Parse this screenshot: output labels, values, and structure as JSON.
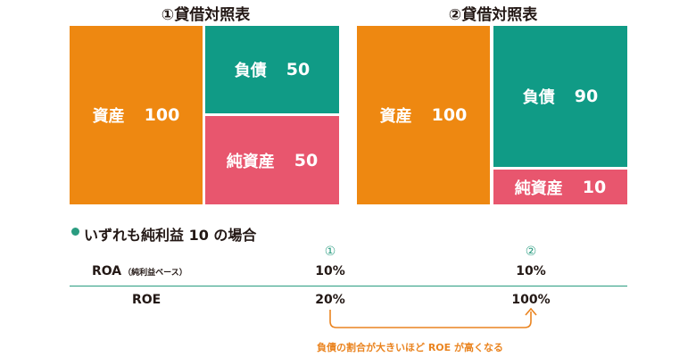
{
  "colors": {
    "asset": "#ee8811",
    "liability": "#109b86",
    "equity": "#e8566e",
    "accent_green": "#2a9c80",
    "divider": "#2a9c80",
    "note": "#ea8420"
  },
  "sheet1": {
    "title": "①貸借対照表",
    "asset_label": "資産",
    "asset_value": "100",
    "liability_label": "負債",
    "liability_value": "50",
    "equity_label": "純資産",
    "equity_value": "50"
  },
  "sheet2": {
    "title": "②貸借対照表",
    "asset_label": "資産",
    "asset_value": "100",
    "liability_label": "負債",
    "liability_value": "90",
    "equity_label": "純資産",
    "equity_value": "10"
  },
  "section": {
    "heading": "いずれも純利益 10 の場合",
    "col1_marker": "①",
    "col2_marker": "②"
  },
  "rows": [
    {
      "label": "ROA",
      "sublabel": "（純利益ベース）",
      "v1": "10%",
      "v2": "10%"
    },
    {
      "label": "ROE",
      "sublabel": "",
      "v1": "20%",
      "v2": "100%"
    }
  ],
  "note": "負債の割合が大きいほど ROE が高くなる"
}
